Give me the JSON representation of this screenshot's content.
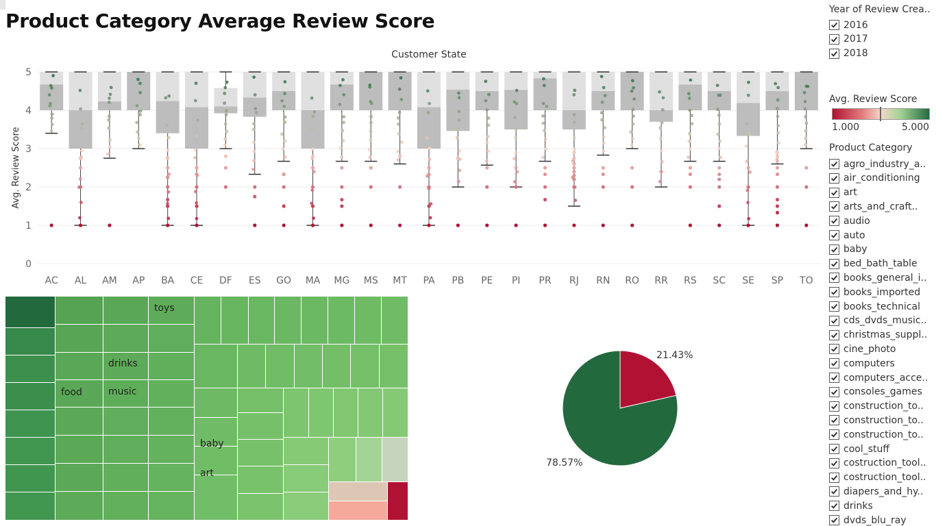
{
  "title": "Product Category Average Review Score",
  "colors": {
    "green_dark": "#23693e",
    "green_light": "#a3d496",
    "red": "#b11234",
    "salmon": "#f4a28c"
  },
  "chart_data": [
    {
      "type": "boxplot",
      "title": "Customer State",
      "ylabel": "Avg. Review Score",
      "ylim": [
        0,
        5
      ],
      "yticks": [
        "0",
        "1",
        "2",
        "3",
        "4",
        "5"
      ],
      "grid": true,
      "categories": [
        "AC",
        "AL",
        "AM",
        "AP",
        "BA",
        "CE",
        "DF",
        "ES",
        "GO",
        "MA",
        "MG",
        "MS",
        "MT",
        "PA",
        "PB",
        "PE",
        "PI",
        "PR",
        "RJ",
        "RN",
        "RO",
        "RR",
        "RS",
        "SC",
        "SE",
        "SP",
        "TO"
      ],
      "boxes": [
        {
          "state": "AC",
          "min": 3.4,
          "q1": 4.0,
          "median": 4.67,
          "q3": 5.0,
          "max": 5.0
        },
        {
          "state": "AL",
          "min": 1.0,
          "q1": 3.0,
          "median": 4.0,
          "q3": 5.0,
          "max": 5.0
        },
        {
          "state": "AM",
          "min": 2.75,
          "q1": 4.0,
          "median": 4.23,
          "q3": 5.0,
          "max": 5.0
        },
        {
          "state": "AP",
          "min": 3.0,
          "q1": 4.0,
          "median": 5.0,
          "q3": 5.0,
          "max": 5.0
        },
        {
          "state": "BA",
          "min": 1.0,
          "q1": 3.4,
          "median": 4.24,
          "q3": 5.0,
          "max": 5.0
        },
        {
          "state": "CE",
          "min": 1.0,
          "q1": 3.0,
          "median": 4.08,
          "q3": 5.0,
          "max": 5.0
        },
        {
          "state": "DF",
          "min": 3.0,
          "q1": 3.92,
          "median": 4.1,
          "q3": 4.58,
          "max": 5.0
        },
        {
          "state": "ES",
          "min": 2.33,
          "q1": 3.83,
          "median": 4.33,
          "q3": 5.0,
          "max": 5.0
        },
        {
          "state": "GO",
          "min": 2.67,
          "q1": 4.0,
          "median": 4.5,
          "q3": 5.0,
          "max": 5.0
        },
        {
          "state": "MA",
          "min": 1.0,
          "q1": 3.0,
          "median": 4.0,
          "q3": 5.0,
          "max": 5.0
        },
        {
          "state": "MG",
          "min": 2.67,
          "q1": 4.0,
          "median": 4.67,
          "q3": 5.0,
          "max": 5.0
        },
        {
          "state": "MS",
          "min": 2.67,
          "q1": 4.0,
          "median": 5.0,
          "q3": 5.0,
          "max": 5.0
        },
        {
          "state": "MT",
          "min": 2.6,
          "q1": 4.0,
          "median": 5.0,
          "q3": 5.0,
          "max": 5.0
        },
        {
          "state": "PA",
          "min": 1.0,
          "q1": 3.0,
          "median": 4.08,
          "q3": 5.0,
          "max": 5.0
        },
        {
          "state": "PB",
          "min": 2.0,
          "q1": 3.46,
          "median": 4.54,
          "q3": 5.0,
          "max": 5.0
        },
        {
          "state": "PE",
          "min": 2.57,
          "q1": 4.0,
          "median": 4.5,
          "q3": 5.0,
          "max": 5.0
        },
        {
          "state": "PI",
          "min": 2.0,
          "q1": 3.5,
          "median": 4.53,
          "q3": 5.0,
          "max": 5.0
        },
        {
          "state": "PR",
          "min": 2.67,
          "q1": 4.0,
          "median": 4.83,
          "q3": 5.0,
          "max": 5.0
        },
        {
          "state": "RJ",
          "min": 1.5,
          "q1": 3.5,
          "median": 4.0,
          "q3": 5.0,
          "max": 5.0
        },
        {
          "state": "RN",
          "min": 2.83,
          "q1": 4.0,
          "median": 4.5,
          "q3": 5.0,
          "max": 5.0
        },
        {
          "state": "RO",
          "min": 3.0,
          "q1": 4.0,
          "median": 5.0,
          "q3": 5.0,
          "max": 5.0
        },
        {
          "state": "RR",
          "min": 2.0,
          "q1": 3.7,
          "median": 4.0,
          "q3": 5.0,
          "max": 5.0
        },
        {
          "state": "RS",
          "min": 2.67,
          "q1": 4.0,
          "median": 4.67,
          "q3": 5.0,
          "max": 5.0
        },
        {
          "state": "SC",
          "min": 2.67,
          "q1": 4.0,
          "median": 4.5,
          "q3": 5.0,
          "max": 5.0
        },
        {
          "state": "SE",
          "min": 1.0,
          "q1": 3.33,
          "median": 4.19,
          "q3": 5.0,
          "max": 5.0
        },
        {
          "state": "SP",
          "min": 2.6,
          "q1": 4.0,
          "median": 4.5,
          "q3": 5.0,
          "max": 5.0
        },
        {
          "state": "TO",
          "min": 3.0,
          "q1": 4.0,
          "median": 5.0,
          "q3": 5.0,
          "max": 5.0
        }
      ],
      "outliers": [
        {
          "state": "AC",
          "values": [
            1.0
          ]
        },
        {
          "state": "AL",
          "values": [
            2.75,
            2.5,
            2.0,
            1.0
          ]
        },
        {
          "state": "AM",
          "values": [
            1.0
          ]
        },
        {
          "state": "BA",
          "values": [
            2.75,
            2.5,
            2.25,
            2.0,
            1.67,
            1.5,
            1.0
          ]
        },
        {
          "state": "CE",
          "values": [
            2.5,
            2.33,
            2.0,
            1.5,
            1.0
          ]
        },
        {
          "state": "DF",
          "values": [
            2.8,
            2.5,
            2.0
          ]
        },
        {
          "state": "ES",
          "values": [
            2.0,
            1.75,
            1.0
          ]
        },
        {
          "state": "GO",
          "values": [
            2.33,
            2.0,
            1.5,
            1.0
          ]
        },
        {
          "state": "MA",
          "values": [
            2.8,
            2.5,
            2.0,
            1.5,
            1.0
          ]
        },
        {
          "state": "MG",
          "values": [
            2.5,
            2.0,
            1.67,
            1.5,
            1.0
          ]
        },
        {
          "state": "MS",
          "values": [
            2.5,
            2.0,
            1.0
          ]
        },
        {
          "state": "MT",
          "values": [
            2.8,
            2.0,
            1.0
          ]
        },
        {
          "state": "PA",
          "values": [
            2.5,
            2.33,
            2.0,
            1.5,
            1.0
          ]
        },
        {
          "state": "PB",
          "values": [
            2.75,
            1.0
          ]
        },
        {
          "state": "PE",
          "values": [
            2.5,
            2.0,
            1.0
          ]
        },
        {
          "state": "PI",
          "values": [
            2.5,
            2.0,
            1.0
          ]
        },
        {
          "state": "PR",
          "values": [
            2.5,
            2.33,
            2.0,
            1.67,
            1.0
          ]
        },
        {
          "state": "RJ",
          "values": [
            2.9,
            2.75,
            2.6,
            2.5,
            2.4,
            2.3,
            2.2,
            2.0,
            1.0
          ]
        },
        {
          "state": "RN",
          "values": [
            2.5,
            2.33,
            2.0,
            1.0
          ]
        },
        {
          "state": "RO",
          "values": [
            2.5,
            2.0,
            1.0
          ]
        },
        {
          "state": "RR",
          "values": [
            2.4
          ]
        },
        {
          "state": "RS",
          "values": [
            2.5,
            2.33,
            2.0,
            1.0
          ]
        },
        {
          "state": "SC",
          "values": [
            2.5,
            2.33,
            2.2,
            2.0,
            1.5,
            1.0
          ]
        },
        {
          "state": "SE",
          "values": [
            2.5,
            2.0,
            1.0
          ]
        },
        {
          "state": "SP",
          "values": [
            2.9,
            2.8,
            2.67,
            2.5,
            2.33,
            2.0,
            1.67,
            1.5,
            1.33,
            1.0
          ]
        },
        {
          "state": "TO",
          "values": [
            2.5,
            2.0,
            1.0
          ]
        }
      ]
    },
    {
      "type": "treemap",
      "labels": [
        "toys",
        "drinks",
        "food",
        "music",
        "baby",
        "art"
      ]
    },
    {
      "type": "pie",
      "slices": [
        {
          "value": 21.43,
          "label": "21.43%",
          "color": "#b11234"
        },
        {
          "value": 78.57,
          "label": "78.57%",
          "color": "#23693e"
        }
      ]
    }
  ],
  "filters": {
    "year": {
      "title": "Year of Review Crea..",
      "options": [
        "2016",
        "2017",
        "2018"
      ]
    },
    "legend": {
      "title": "Avg. Review Score",
      "min_label": "1.000",
      "max_label": "5.000"
    },
    "category": {
      "title": "Product Category",
      "options": [
        "agro_industry_a..",
        "air_conditioning",
        "art",
        "arts_and_craft..",
        "audio",
        "auto",
        "baby",
        "bed_bath_table",
        "books_general_i..",
        "books_imported",
        "books_technical",
        "cds_dvds_music..",
        "christmas_suppl..",
        "cine_photo",
        "computers",
        "computers_acce..",
        "consoles_games",
        "construction_to..",
        "construction_to..",
        "construction_to..",
        "cool_stuff",
        "costruction_tool..",
        "costruction_tool..",
        "diapers_and_hy..",
        "drinks",
        "dvds_blu_ray"
      ]
    }
  }
}
